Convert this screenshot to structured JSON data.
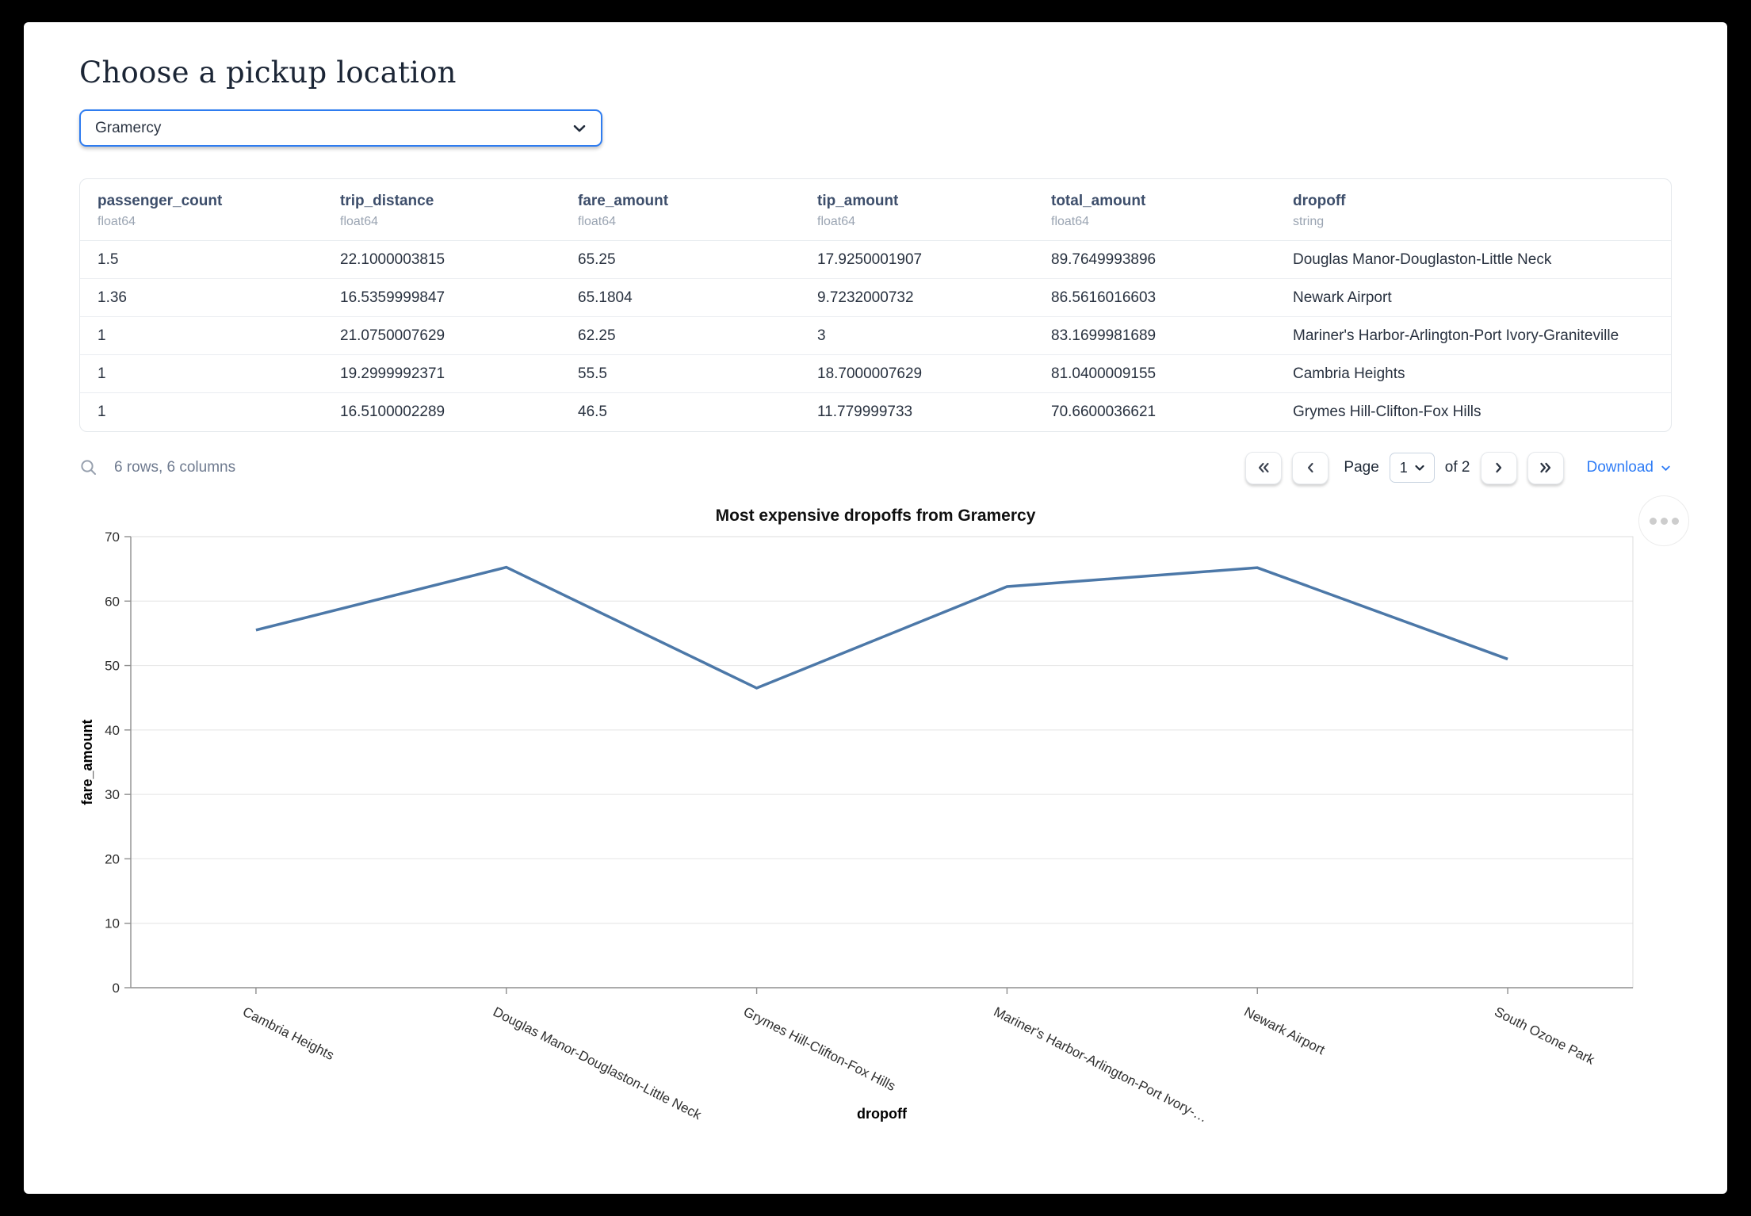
{
  "page": {
    "title": "Choose a pickup location"
  },
  "pickup_select": {
    "value": "Gramercy"
  },
  "table": {
    "columns": [
      {
        "name": "passenger_count",
        "type": "float64"
      },
      {
        "name": "trip_distance",
        "type": "float64"
      },
      {
        "name": "fare_amount",
        "type": "float64"
      },
      {
        "name": "tip_amount",
        "type": "float64"
      },
      {
        "name": "total_amount",
        "type": "float64"
      },
      {
        "name": "dropoff",
        "type": "string"
      }
    ],
    "rows": [
      [
        "1.5",
        "22.1000003815",
        "65.25",
        "17.9250001907",
        "89.7649993896",
        "Douglas Manor-Douglaston-Little Neck"
      ],
      [
        "1.36",
        "16.5359999847",
        "65.1804",
        "9.7232000732",
        "86.5616016603",
        "Newark Airport"
      ],
      [
        "1",
        "21.0750007629",
        "62.25",
        "3",
        "83.1699981689",
        "Mariner's Harbor-Arlington-Port Ivory-Graniteville"
      ],
      [
        "1",
        "19.2999992371",
        "55.5",
        "18.7000007629",
        "81.0400009155",
        "Cambria Heights"
      ],
      [
        "1",
        "16.5100002289",
        "46.5",
        "11.779999733",
        "70.6600036621",
        "Grymes Hill-Clifton-Fox Hills"
      ]
    ],
    "footer": {
      "summary": "6 rows, 6 columns",
      "page_label": "Page",
      "current_page": "1",
      "of_text": "of 2",
      "download_label": "Download"
    }
  },
  "icons": {
    "search": "magnifier ⌕",
    "select_chevron": "chevron-down ⌄",
    "first_page": "«",
    "prev_page": "‹",
    "next_page": "›",
    "last_page": "»",
    "download_chevron": "chevron-down ⌄",
    "chart_menu": "…"
  },
  "chart_data": {
    "type": "line",
    "title": "Most expensive dropoffs from Gramercy",
    "xlabel": "dropoff",
    "ylabel": "fare_amount",
    "ylim": [
      0,
      70
    ],
    "yticks": [
      0,
      10,
      20,
      30,
      40,
      50,
      60,
      70
    ],
    "grid": true,
    "legend_position": "none",
    "line_color": "#4C78A8",
    "categories": [
      "Cambria Heights",
      "Douglas Manor-Douglaston-Little Neck",
      "Grymes Hill-Clifton-Fox Hills",
      "Mariner's Harbor-Arlington-Port Ivory-Graniteville",
      "Newark Airport",
      "South Ozone Park"
    ],
    "x_tick_labels": [
      "Cambria Heights",
      "Douglas Manor-Douglaston-Little Neck",
      "Grymes Hill-Clifton-Fox Hills",
      "Mariner's Harbor-Arlington-Port Ivory-…",
      "Newark Airport",
      "South Ozone Park"
    ],
    "values": [
      55.5,
      65.25,
      46.5,
      62.25,
      65.1804,
      51
    ]
  }
}
